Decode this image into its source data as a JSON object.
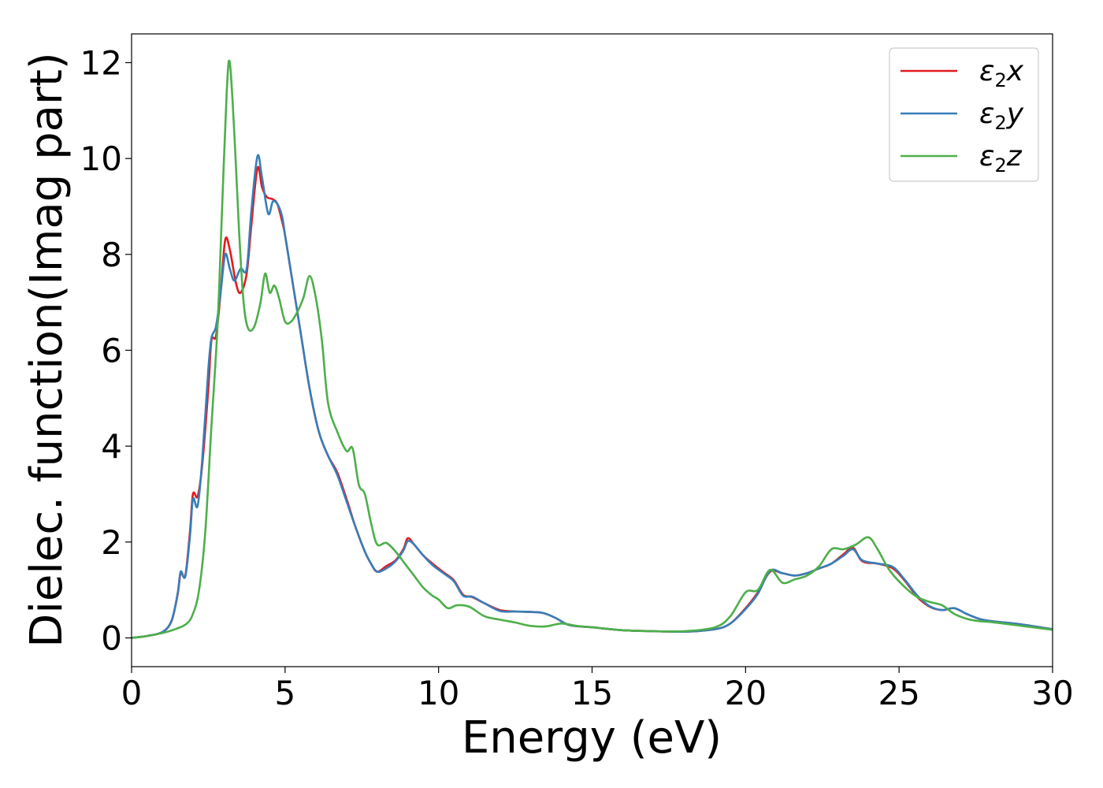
{
  "chart_data": {
    "type": "line",
    "title": "",
    "xlabel": "Energy (eV)",
    "ylabel": "Dielec. function(Imag part)",
    "xlim": [
      0,
      30
    ],
    "ylim": [
      -0.6,
      12.6
    ],
    "xticks": [
      0,
      5,
      10,
      15,
      20,
      25,
      30
    ],
    "yticks": [
      0,
      2,
      4,
      6,
      8,
      10,
      12
    ],
    "xtick_labels": [
      "0",
      "5",
      "10",
      "15",
      "20",
      "25",
      "30"
    ],
    "ytick_labels": [
      "0",
      "2",
      "4",
      "6",
      "8",
      "10",
      "12"
    ],
    "grid": false,
    "legend_position": "top-right",
    "series": [
      {
        "name": "ε2x",
        "legend_base": "ε",
        "legend_sub": "2",
        "legend_suffix": "x",
        "color": "#e41a1c",
        "points": [
          [
            0,
            0
          ],
          [
            0.5,
            0.04
          ],
          [
            1.0,
            0.12
          ],
          [
            1.3,
            0.35
          ],
          [
            1.5,
            0.9
          ],
          [
            1.6,
            1.35
          ],
          [
            1.75,
            1.3
          ],
          [
            1.9,
            2.2
          ],
          [
            2.0,
            3.0
          ],
          [
            2.15,
            2.95
          ],
          [
            2.3,
            3.6
          ],
          [
            2.5,
            5.2
          ],
          [
            2.6,
            6.2
          ],
          [
            2.75,
            6.3
          ],
          [
            2.9,
            7.2
          ],
          [
            3.05,
            8.3
          ],
          [
            3.2,
            8.1
          ],
          [
            3.4,
            7.4
          ],
          [
            3.55,
            7.2
          ],
          [
            3.75,
            7.6
          ],
          [
            3.9,
            8.6
          ],
          [
            4.1,
            9.8
          ],
          [
            4.25,
            9.4
          ],
          [
            4.4,
            9.2
          ],
          [
            4.6,
            9.15
          ],
          [
            4.75,
            9.05
          ],
          [
            4.9,
            8.7
          ],
          [
            5.0,
            8.4
          ],
          [
            5.2,
            7.6
          ],
          [
            5.5,
            6.4
          ],
          [
            5.8,
            5.2
          ],
          [
            6.1,
            4.3
          ],
          [
            6.4,
            3.8
          ],
          [
            6.7,
            3.45
          ],
          [
            7.0,
            2.9
          ],
          [
            7.3,
            2.3
          ],
          [
            7.6,
            1.8
          ],
          [
            7.8,
            1.55
          ],
          [
            8.0,
            1.38
          ],
          [
            8.3,
            1.5
          ],
          [
            8.6,
            1.62
          ],
          [
            8.85,
            1.85
          ],
          [
            9.0,
            2.08
          ],
          [
            9.2,
            1.95
          ],
          [
            9.5,
            1.72
          ],
          [
            9.8,
            1.55
          ],
          [
            10.2,
            1.35
          ],
          [
            10.5,
            1.2
          ],
          [
            10.8,
            0.9
          ],
          [
            11.1,
            0.85
          ],
          [
            11.5,
            0.72
          ],
          [
            12.0,
            0.58
          ],
          [
            12.5,
            0.55
          ],
          [
            13.0,
            0.54
          ],
          [
            13.4,
            0.52
          ],
          [
            13.8,
            0.42
          ],
          [
            14.2,
            0.28
          ],
          [
            14.6,
            0.24
          ],
          [
            15.0,
            0.22
          ],
          [
            16.0,
            0.16
          ],
          [
            17.0,
            0.14
          ],
          [
            18.0,
            0.13
          ],
          [
            19.0,
            0.18
          ],
          [
            19.5,
            0.3
          ],
          [
            20.0,
            0.62
          ],
          [
            20.4,
            0.95
          ],
          [
            20.8,
            1.38
          ],
          [
            21.2,
            1.35
          ],
          [
            21.6,
            1.3
          ],
          [
            22.0,
            1.35
          ],
          [
            22.4,
            1.45
          ],
          [
            22.8,
            1.55
          ],
          [
            23.2,
            1.75
          ],
          [
            23.5,
            1.88
          ],
          [
            23.8,
            1.6
          ],
          [
            24.3,
            1.55
          ],
          [
            24.8,
            1.45
          ],
          [
            25.2,
            1.18
          ],
          [
            25.6,
            0.85
          ],
          [
            26.0,
            0.65
          ],
          [
            26.4,
            0.58
          ],
          [
            26.8,
            0.62
          ],
          [
            27.2,
            0.5
          ],
          [
            27.6,
            0.4
          ],
          [
            28.0,
            0.35
          ],
          [
            29.0,
            0.28
          ],
          [
            30.0,
            0.18
          ]
        ]
      },
      {
        "name": "ε2y",
        "legend_base": "ε",
        "legend_sub": "2",
        "legend_suffix": "y",
        "color": "#377eb8",
        "points": [
          [
            0,
            0
          ],
          [
            0.5,
            0.04
          ],
          [
            1.0,
            0.12
          ],
          [
            1.3,
            0.36
          ],
          [
            1.5,
            0.92
          ],
          [
            1.6,
            1.38
          ],
          [
            1.75,
            1.28
          ],
          [
            1.9,
            2.1
          ],
          [
            2.0,
            2.9
          ],
          [
            2.15,
            2.75
          ],
          [
            2.3,
            3.7
          ],
          [
            2.5,
            5.6
          ],
          [
            2.6,
            6.25
          ],
          [
            2.75,
            6.5
          ],
          [
            2.9,
            7.2
          ],
          [
            3.05,
            8.0
          ],
          [
            3.2,
            7.7
          ],
          [
            3.35,
            7.45
          ],
          [
            3.55,
            7.7
          ],
          [
            3.75,
            7.7
          ],
          [
            3.9,
            8.9
          ],
          [
            4.1,
            10.05
          ],
          [
            4.25,
            9.6
          ],
          [
            4.45,
            8.85
          ],
          [
            4.6,
            9.1
          ],
          [
            4.75,
            9.05
          ],
          [
            4.9,
            8.8
          ],
          [
            5.0,
            8.4
          ],
          [
            5.2,
            7.6
          ],
          [
            5.5,
            6.4
          ],
          [
            5.8,
            5.2
          ],
          [
            6.1,
            4.3
          ],
          [
            6.4,
            3.8
          ],
          [
            6.7,
            3.4
          ],
          [
            7.0,
            2.85
          ],
          [
            7.3,
            2.3
          ],
          [
            7.6,
            1.8
          ],
          [
            7.8,
            1.55
          ],
          [
            8.0,
            1.38
          ],
          [
            8.3,
            1.45
          ],
          [
            8.6,
            1.6
          ],
          [
            8.85,
            1.82
          ],
          [
            9.0,
            2.02
          ],
          [
            9.2,
            1.95
          ],
          [
            9.5,
            1.72
          ],
          [
            9.8,
            1.52
          ],
          [
            10.2,
            1.33
          ],
          [
            10.5,
            1.18
          ],
          [
            10.8,
            0.88
          ],
          [
            11.1,
            0.86
          ],
          [
            11.5,
            0.72
          ],
          [
            12.0,
            0.56
          ],
          [
            12.5,
            0.55
          ],
          [
            13.0,
            0.54
          ],
          [
            13.4,
            0.52
          ],
          [
            13.8,
            0.42
          ],
          [
            14.2,
            0.28
          ],
          [
            14.6,
            0.24
          ],
          [
            15.0,
            0.22
          ],
          [
            16.0,
            0.16
          ],
          [
            17.0,
            0.14
          ],
          [
            18.0,
            0.13
          ],
          [
            19.0,
            0.18
          ],
          [
            19.5,
            0.3
          ],
          [
            20.0,
            0.6
          ],
          [
            20.4,
            0.92
          ],
          [
            20.8,
            1.4
          ],
          [
            21.2,
            1.35
          ],
          [
            21.6,
            1.3
          ],
          [
            22.0,
            1.35
          ],
          [
            22.4,
            1.45
          ],
          [
            22.8,
            1.55
          ],
          [
            23.2,
            1.72
          ],
          [
            23.5,
            1.85
          ],
          [
            23.8,
            1.62
          ],
          [
            24.3,
            1.55
          ],
          [
            24.8,
            1.48
          ],
          [
            25.2,
            1.2
          ],
          [
            25.6,
            0.88
          ],
          [
            26.0,
            0.66
          ],
          [
            26.4,
            0.58
          ],
          [
            26.8,
            0.62
          ],
          [
            27.2,
            0.5
          ],
          [
            27.6,
            0.4
          ],
          [
            28.0,
            0.35
          ],
          [
            29.0,
            0.28
          ],
          [
            30.0,
            0.18
          ]
        ]
      },
      {
        "name": "ε2z",
        "legend_base": "ε",
        "legend_sub": "2",
        "legend_suffix": "z",
        "color": "#4daf4a",
        "points": [
          [
            0,
            0
          ],
          [
            0.5,
            0.04
          ],
          [
            1.0,
            0.1
          ],
          [
            1.5,
            0.2
          ],
          [
            1.8,
            0.3
          ],
          [
            2.0,
            0.5
          ],
          [
            2.2,
            1.0
          ],
          [
            2.4,
            2.2
          ],
          [
            2.6,
            4.4
          ],
          [
            2.8,
            6.5
          ],
          [
            2.95,
            9.0
          ],
          [
            3.1,
            11.4
          ],
          [
            3.2,
            12.0
          ],
          [
            3.35,
            10.5
          ],
          [
            3.5,
            8.5
          ],
          [
            3.65,
            7.0
          ],
          [
            3.8,
            6.45
          ],
          [
            4.0,
            6.5
          ],
          [
            4.2,
            7.0
          ],
          [
            4.35,
            7.6
          ],
          [
            4.5,
            7.2
          ],
          [
            4.65,
            7.35
          ],
          [
            4.8,
            7.1
          ],
          [
            5.0,
            6.6
          ],
          [
            5.2,
            6.6
          ],
          [
            5.4,
            6.8
          ],
          [
            5.6,
            7.1
          ],
          [
            5.8,
            7.55
          ],
          [
            6.0,
            7.1
          ],
          [
            6.2,
            6.2
          ],
          [
            6.4,
            4.9
          ],
          [
            6.7,
            4.3
          ],
          [
            7.0,
            3.9
          ],
          [
            7.2,
            3.95
          ],
          [
            7.4,
            3.2
          ],
          [
            7.6,
            3.0
          ],
          [
            7.8,
            2.4
          ],
          [
            8.0,
            1.95
          ],
          [
            8.3,
            1.98
          ],
          [
            8.6,
            1.8
          ],
          [
            8.9,
            1.55
          ],
          [
            9.2,
            1.3
          ],
          [
            9.5,
            1.05
          ],
          [
            9.8,
            0.88
          ],
          [
            10.0,
            0.8
          ],
          [
            10.3,
            0.62
          ],
          [
            10.6,
            0.68
          ],
          [
            11.0,
            0.65
          ],
          [
            11.5,
            0.45
          ],
          [
            12.0,
            0.38
          ],
          [
            12.5,
            0.32
          ],
          [
            13.0,
            0.25
          ],
          [
            13.5,
            0.24
          ],
          [
            14.0,
            0.3
          ],
          [
            14.5,
            0.25
          ],
          [
            15.0,
            0.22
          ],
          [
            16.0,
            0.16
          ],
          [
            17.0,
            0.14
          ],
          [
            18.0,
            0.14
          ],
          [
            19.0,
            0.22
          ],
          [
            19.5,
            0.45
          ],
          [
            20.0,
            0.95
          ],
          [
            20.4,
            1.0
          ],
          [
            20.8,
            1.42
          ],
          [
            21.2,
            1.15
          ],
          [
            21.6,
            1.22
          ],
          [
            22.0,
            1.3
          ],
          [
            22.4,
            1.5
          ],
          [
            22.8,
            1.85
          ],
          [
            23.2,
            1.85
          ],
          [
            23.6,
            1.95
          ],
          [
            24.0,
            2.1
          ],
          [
            24.3,
            1.85
          ],
          [
            24.7,
            1.4
          ],
          [
            25.2,
            1.05
          ],
          [
            25.6,
            0.85
          ],
          [
            26.0,
            0.75
          ],
          [
            26.4,
            0.68
          ],
          [
            26.8,
            0.5
          ],
          [
            27.2,
            0.4
          ],
          [
            27.6,
            0.35
          ],
          [
            28.0,
            0.33
          ],
          [
            29.0,
            0.25
          ],
          [
            30.0,
            0.17
          ]
        ]
      }
    ]
  }
}
